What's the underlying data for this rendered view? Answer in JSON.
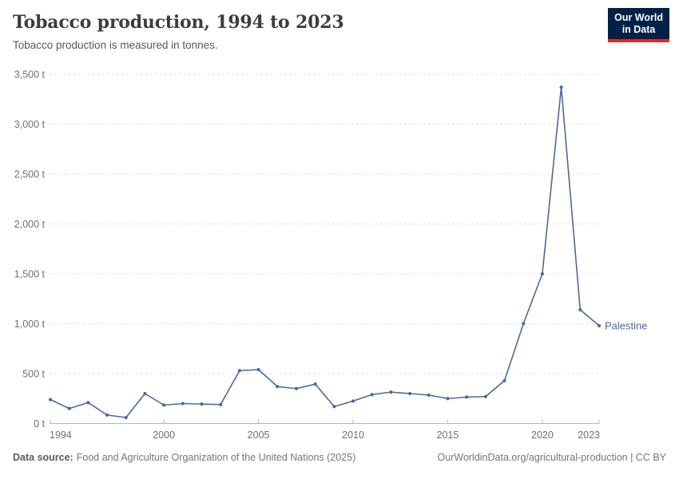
{
  "header": {
    "title": "Tobacco production, 1994 to 2023",
    "subtitle": "Tobacco production is measured in tonnes.",
    "logo_line1": "Our World",
    "logo_line2": "in Data"
  },
  "chart_data": {
    "type": "line",
    "title": "Tobacco production, 1994 to 2023",
    "unit": "tonnes",
    "x": [
      1994,
      1995,
      1996,
      1997,
      1998,
      1999,
      2000,
      2001,
      2002,
      2003,
      2004,
      2005,
      2006,
      2007,
      2008,
      2009,
      2010,
      2011,
      2012,
      2013,
      2014,
      2015,
      2016,
      2017,
      2018,
      2019,
      2020,
      2021,
      2022,
      2023
    ],
    "series": [
      {
        "name": "Palestine",
        "color": "#4C6A9C",
        "values": [
          240,
          150,
          210,
          85,
          60,
          300,
          185,
          200,
          195,
          190,
          530,
          540,
          370,
          350,
          395,
          170,
          225,
          290,
          315,
          300,
          285,
          250,
          265,
          270,
          430,
          1000,
          1500,
          3370,
          1140,
          980
        ]
      }
    ],
    "ylim": [
      0,
      3500
    ],
    "yticks": [
      0,
      500,
      1000,
      1500,
      2000,
      2500,
      3000,
      3500
    ],
    "ytick_labels": [
      "0 t",
      "500 t",
      "1,000 t",
      "1,500 t",
      "2,000 t",
      "2,500 t",
      "3,000 t",
      "3,500 t"
    ],
    "xticks": [
      1994,
      2000,
      2005,
      2010,
      2015,
      2020,
      2023
    ],
    "grid": "horizontal-dashed",
    "legend": "entity-label-at-line-end"
  },
  "colors": {
    "background": "#ffffff",
    "title": "#3b3e40",
    "subtitle": "#57595a",
    "axis": "#b5b5b5",
    "gridline": "#dcdcdc",
    "tick_label": "#6e7073",
    "series_line": "#4C6A9C",
    "footer_text": "#757575",
    "footer_label": "#5b5b5b",
    "logo_bg": "#002147",
    "logo_accent": "#e02b23",
    "logo_text": "#ffffff"
  },
  "footer": {
    "source_label": "Data source:",
    "source_text": "Food and Agriculture Organization of the United Nations (2025)",
    "link_text": "OurWorldinData.org/agricultural-production | CC BY"
  }
}
